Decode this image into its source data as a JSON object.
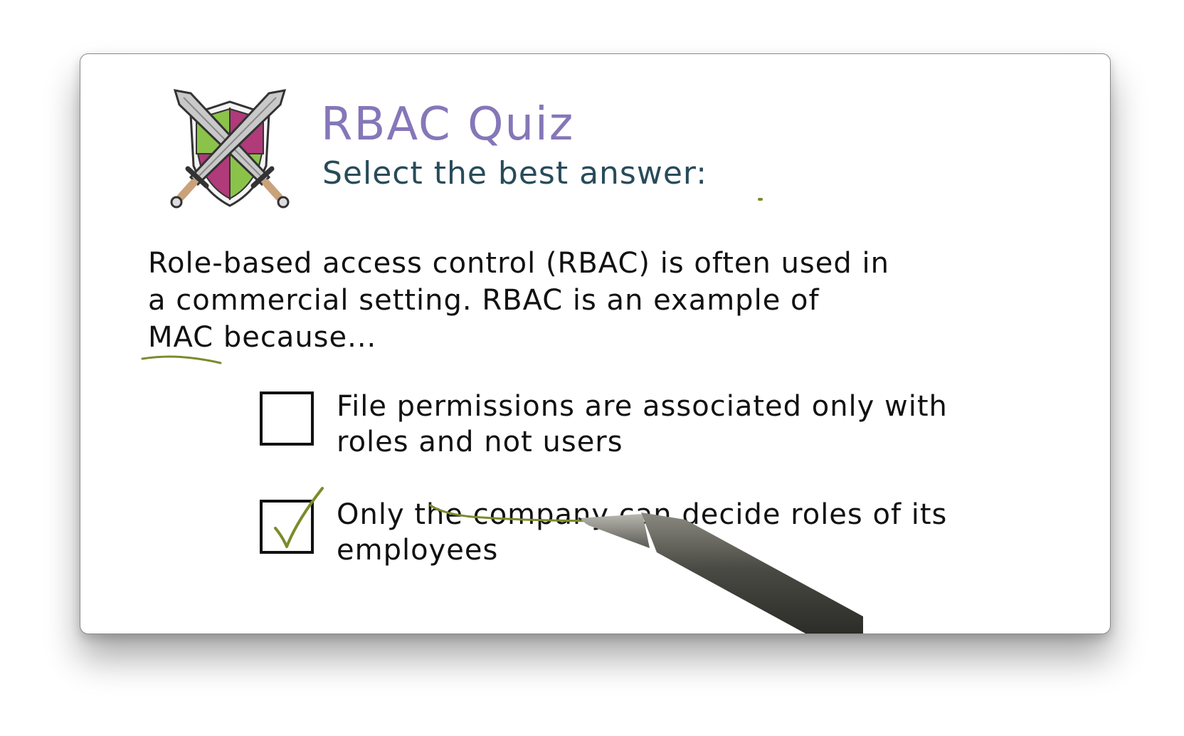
{
  "quiz": {
    "title": "RBAC Quiz",
    "subtitle": "Select the best answer:",
    "question": {
      "line1": "Role-based access control (RBAC) is often used in",
      "line2": "a commercial setting. RBAC is an example of",
      "line3": "MAC because..."
    },
    "options": [
      {
        "line1": "File permissions are associated only with",
        "line2": "roles and not users",
        "checked": false
      },
      {
        "line1": "Only the company can decide roles of its",
        "line2": "employees",
        "checked": true
      }
    ]
  },
  "colors": {
    "title": "#8577b8",
    "subtitle": "#284b5a",
    "text": "#111111",
    "annotation": "#7b8b2a",
    "shield_green": "#8bc34a",
    "shield_magenta": "#b03a7a"
  },
  "icons": {
    "logo": "shield-crossed-swords-icon",
    "check": "checkmark-icon",
    "pen": "stylus-pen-icon"
  }
}
